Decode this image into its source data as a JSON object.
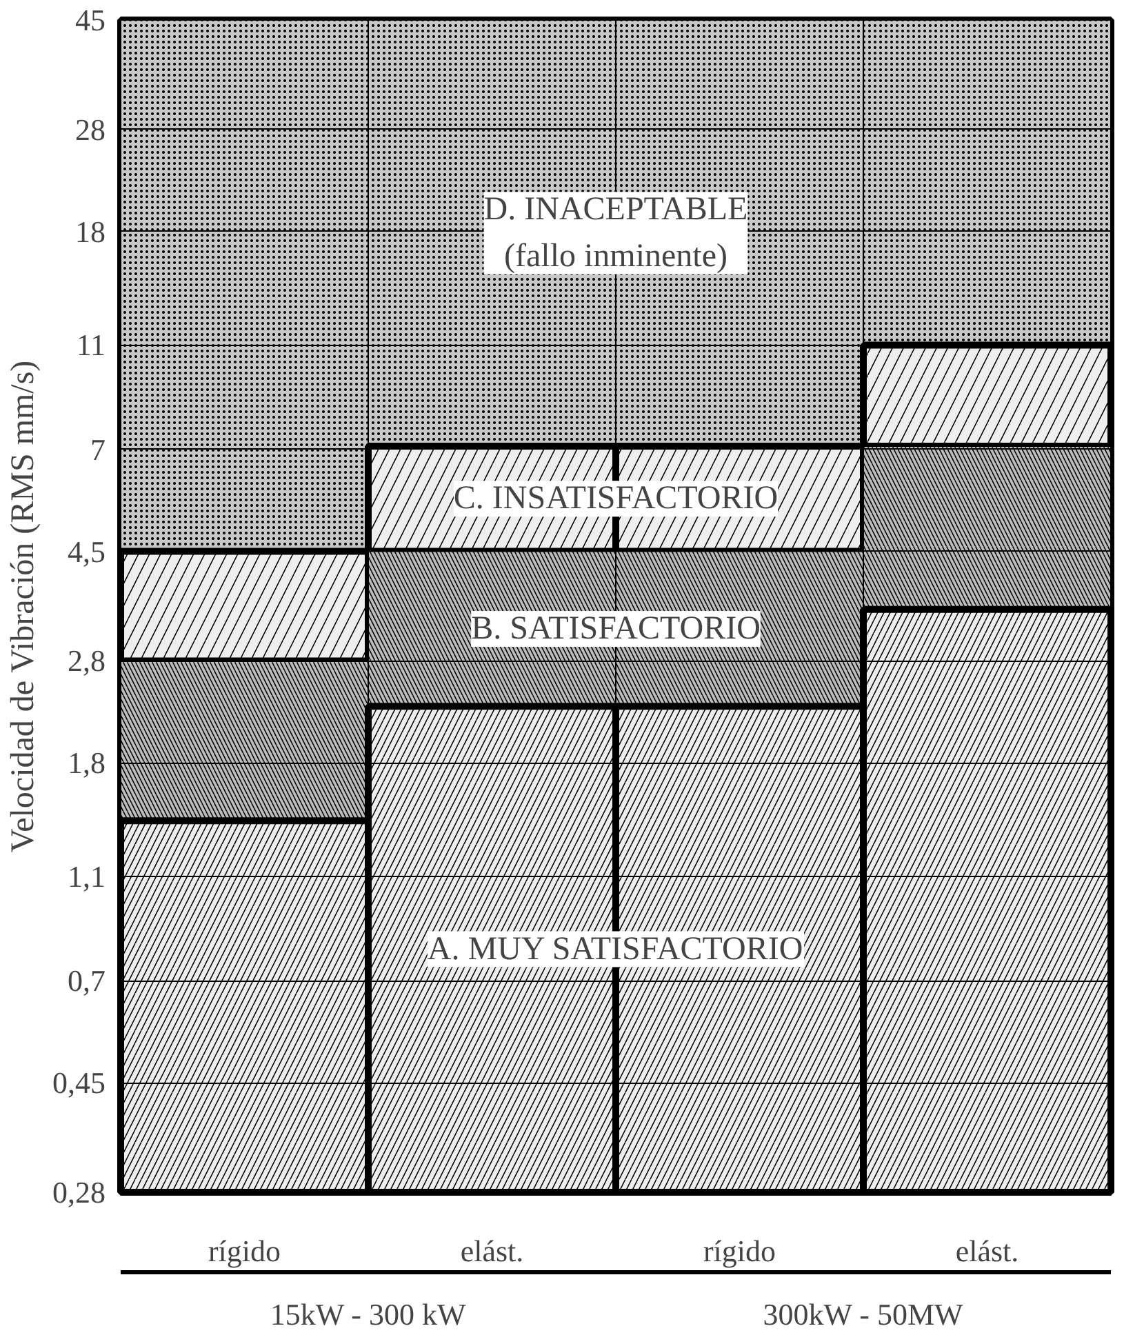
{
  "chart_data": {
    "type": "bar",
    "stacked": true,
    "log": "y",
    "ylabel": "Velocidad de Vibración (RMS mm/s)",
    "categories": [
      "rígido",
      "elást.",
      "rígido",
      "elást."
    ],
    "series": [
      {
        "name": "A. MUY SATISFACTORIO",
        "color": "#eeeeee",
        "values": [
          1.4,
          2.3,
          2.3,
          3.5
        ]
      },
      {
        "name": "B. SATISFACTORIO",
        "color": "#bdbdbd",
        "values": [
          1.4,
          2.2,
          2.2,
          3.6
        ]
      },
      {
        "name": "C. INSATISFACTORIO",
        "color": "#eeeeee",
        "values": [
          1.7,
          2.6,
          2.6,
          3.9
        ]
      },
      {
        "name": "D. INACEPTABLE\n(fallo inminente)",
        "color": "#c8c8c8",
        "values": [
          40.5,
          37.9,
          37.9,
          34.0
        ]
      }
    ],
    "annotations": [
      "15kW - 300 kW",
      "300kW - 50MW"
    ],
    "ylim": [
      0.28,
      45
    ],
    "yticks": [
      {
        "value": 0.28,
        "label": "0,28"
      },
      {
        "value": 0.45,
        "label": "0,45"
      },
      {
        "value": 0.7,
        "label": "0,7"
      },
      {
        "value": 1.1,
        "label": "1,1"
      },
      {
        "value": 1.8,
        "label": "1,8"
      },
      {
        "value": 2.8,
        "label": "2,8"
      },
      {
        "value": 4.5,
        "label": "4,5"
      },
      7,
      11,
      18,
      28,
      45
    ],
    "grid": "y",
    "legend": false
  }
}
